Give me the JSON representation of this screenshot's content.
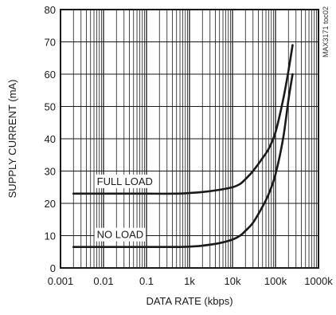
{
  "chart_data": {
    "type": "line",
    "title": "",
    "xlabel": "DATA RATE (kbps)",
    "ylabel": "SUPPLY CURRENT (mA)",
    "x_scale": "log",
    "xlim": [
      0.001,
      1000
    ],
    "ylim": [
      0,
      80
    ],
    "grid": true,
    "legend": "none",
    "x_ticks": [
      0.001,
      0.01,
      0.1,
      1,
      10,
      100,
      1000
    ],
    "x_tick_labels": [
      "0.001",
      "0.01",
      "0.1",
      "1k",
      "10k",
      "100k",
      "1000k"
    ],
    "y_ticks": [
      0,
      10,
      20,
      30,
      40,
      50,
      60,
      70,
      80
    ],
    "y_tick_labels": [
      "0",
      "10",
      "20",
      "30",
      "40",
      "50",
      "60",
      "70",
      "80"
    ],
    "side_note": "MAX3171 toc02",
    "series": [
      {
        "name": "FULL LOAD",
        "color": "#1a1a1a",
        "x": [
          0.002,
          0.005,
          0.01,
          0.05,
          0.1,
          0.5,
          1,
          2,
          5,
          10,
          15,
          20,
          30,
          50,
          70,
          100,
          150,
          200,
          250
        ],
        "y": [
          23,
          23,
          23,
          23,
          23,
          23,
          23.2,
          23.5,
          24.2,
          25,
          26,
          27.5,
          30,
          34,
          37,
          42,
          52,
          61,
          69
        ]
      },
      {
        "name": "NO LOAD",
        "color": "#1a1a1a",
        "x": [
          0.002,
          0.005,
          0.01,
          0.05,
          0.1,
          0.5,
          1,
          2,
          5,
          10,
          15,
          20,
          30,
          50,
          70,
          100,
          150,
          200,
          250
        ],
        "y": [
          6.5,
          6.5,
          6.5,
          6.5,
          6.5,
          6.5,
          6.6,
          6.9,
          7.7,
          8.8,
          10,
          11.5,
          14,
          19,
          23,
          29,
          40,
          52,
          60
        ]
      }
    ]
  }
}
